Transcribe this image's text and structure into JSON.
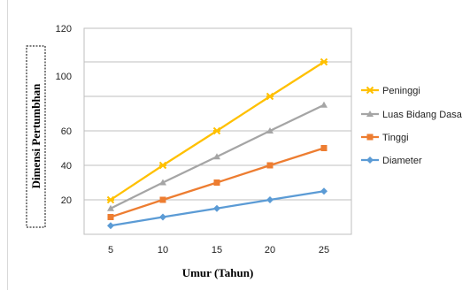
{
  "chart_data": {
    "type": "line",
    "title": "",
    "xlabel": "Umur (Tahun)",
    "ylabel": "Dimensi Pertumbhan",
    "categories": [
      "5",
      "10",
      "15",
      "20",
      "25"
    ],
    "yticks": [
      "20",
      "40",
      "60",
      "100",
      "120"
    ],
    "grid": true,
    "legend_position": "right",
    "series": [
      {
        "name": "Peninggi",
        "color": "#ffc000",
        "marker": "x-star",
        "values": [
          20,
          40,
          60,
          80,
          100
        ]
      },
      {
        "name": "Luas Bidang Dasa",
        "color": "#a5a5a5",
        "marker": "triangle",
        "values": [
          15,
          30,
          45,
          60,
          75
        ]
      },
      {
        "name": "Tinggi",
        "color": "#ed7d31",
        "marker": "square",
        "values": [
          10,
          20,
          30,
          40,
          50
        ]
      },
      {
        "name": "Diameter",
        "color": "#5b9bd5",
        "marker": "diamond",
        "values": [
          5,
          10,
          15,
          20,
          25
        ]
      }
    ]
  }
}
